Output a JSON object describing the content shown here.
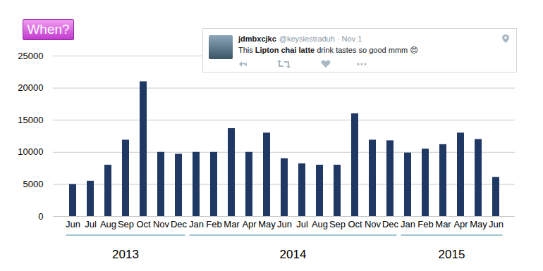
{
  "chart_data": {
    "type": "bar",
    "categories": [
      "Jun",
      "Jul",
      "Aug",
      "Sep",
      "Oct",
      "Nov",
      "Dec",
      "Jan",
      "Feb",
      "Mar",
      "Apr",
      "May",
      "Jun",
      "Jul",
      "Aug",
      "Sep",
      "Oct",
      "Nov",
      "Dec",
      "Jan",
      "Feb",
      "Mar",
      "Apr",
      "May",
      "Jun"
    ],
    "groups": [
      "2013",
      "2013",
      "2013",
      "2013",
      "2013",
      "2013",
      "2013",
      "2014",
      "2014",
      "2014",
      "2014",
      "2014",
      "2014",
      "2014",
      "2014",
      "2014",
      "2014",
      "2014",
      "2014",
      "2015",
      "2015",
      "2015",
      "2015",
      "2015",
      "2015"
    ],
    "values": [
      5000,
      5500,
      8000,
      11900,
      21000,
      10000,
      9700,
      10000,
      10000,
      13700,
      10000,
      13000,
      9000,
      8200,
      8000,
      8000,
      16000,
      11900,
      11800,
      9900,
      10500,
      11200,
      13000,
      12000,
      6100
    ],
    "color": "#1f3864",
    "ylim": [
      0,
      25000
    ],
    "yticks": [
      0,
      5000,
      10000,
      15000,
      20000,
      25000
    ],
    "grid": true,
    "annotations": {
      "badge": "When?",
      "tweet": {
        "user": "jdmbxcjkc",
        "meta": "@keysiestraduh · Nov 1",
        "text": [
          "This ",
          "Lipton chai latte",
          " drink tastes so good mmm 😍"
        ]
      }
    }
  }
}
